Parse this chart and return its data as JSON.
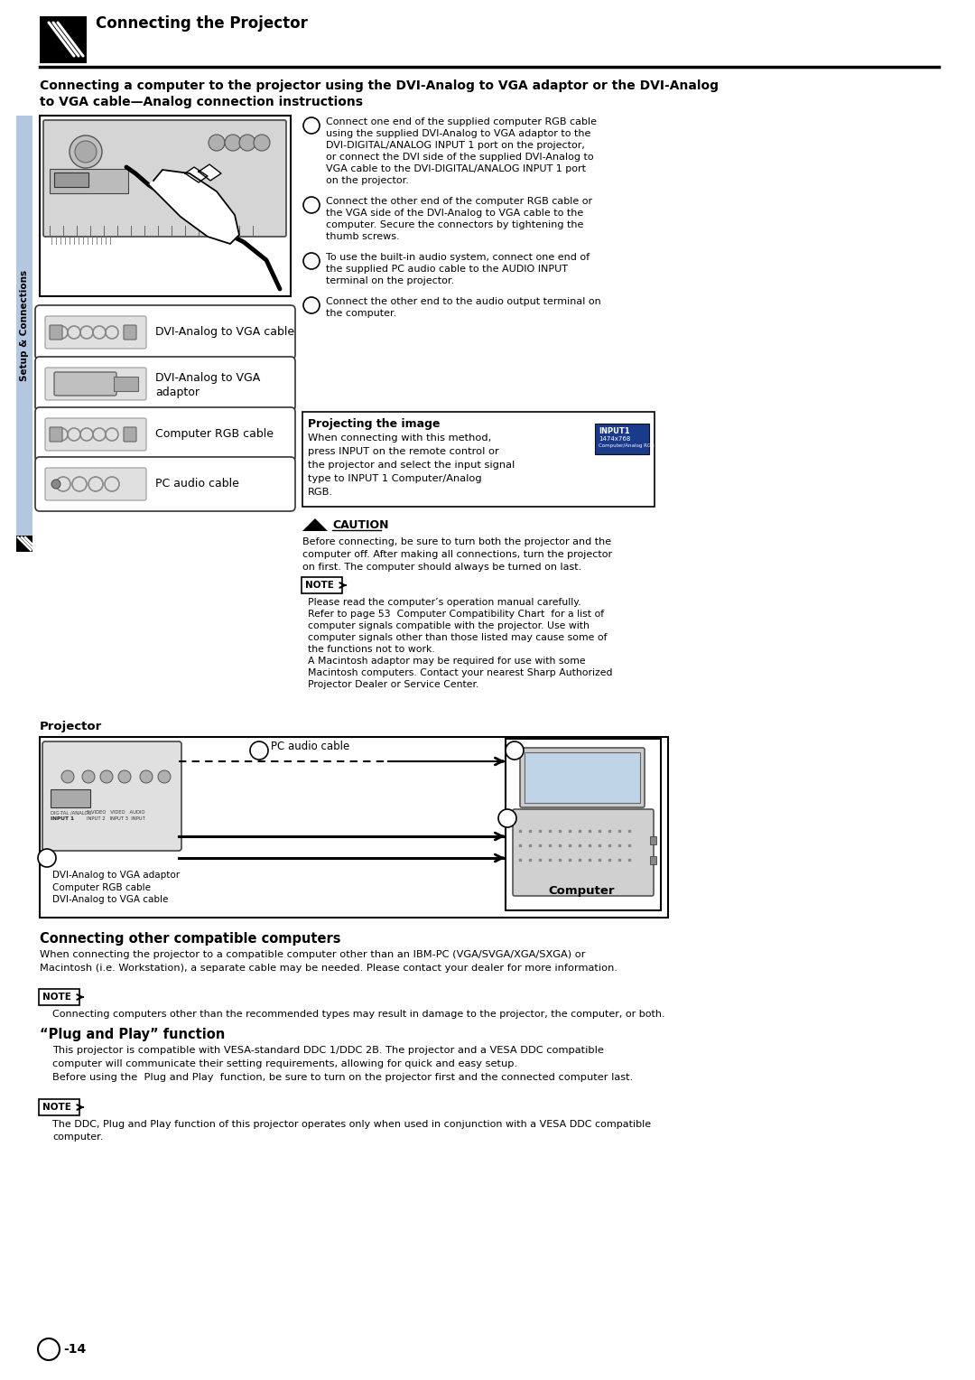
{
  "bg_color": "#ffffff",
  "page_width": 10.8,
  "page_height": 15.28,
  "header_title": "Connecting the Projector",
  "section_title_line1": "Connecting a computer to the projector using the DVI-Analog to VGA adaptor or the DVI-Analog",
  "section_title_line2": "to VGA cable—Analog connection instructions",
  "steps": [
    "Connect one end of the supplied computer RGB cable\nusing the supplied DVI-Analog to VGA adaptor to the\nDVI-DIGITAL/ANALOG INPUT 1 port on the projector,\nor connect the DVI side of the supplied DVI-Analog to\nVGA cable to the DVI-DIGITAL/ANALOG INPUT 1 port\non the projector.",
    "Connect the other end of the computer RGB cable or\nthe VGA side of the DVI-Analog to VGA cable to the\ncomputer. Secure the connectors by tightening the\nthumb screws.",
    "To use the built-in audio system, connect one end of\nthe supplied PC audio cable to the AUDIO INPUT\nterminal on the projector.",
    "Connect the other end to the audio output terminal on\nthe computer."
  ],
  "cable_labels": [
    "DVI-Analog to VGA cable",
    "DVI-Analog to VGA\nadaptor",
    "Computer RGB cable",
    "PC audio cable"
  ],
  "projecting_title": "Projecting the image",
  "projecting_text": "When connecting with this method,\npress INPUT on the remote control or\nthe projector and select the input signal\ntype to INPUT 1 Computer/Analog\nRGB.",
  "caution_title": "CAUTION",
  "caution_text": "Before connecting, be sure to turn both the projector and the\ncomputer off. After making all connections, turn the projector\non first. The computer should always be turned on last.",
  "note1_lines": [
    "Please read the computer’s operation manual carefully.",
    "Refer to page 53  Computer Compatibility Chart  for a list of",
    "computer signals compatible with the projector. Use with",
    "computer signals other than those listed may cause some of",
    "the functions not to work.",
    "A Macintosh adaptor may be required for use with some",
    "Macintosh computers. Contact your nearest Sharp Authorized",
    "Projector Dealer or Service Center."
  ],
  "projector_label": "Projector",
  "diagram_pc_audio_label": "PC audio cable",
  "diagram_adaptor_label": "DVI-Analog to VGA adaptor",
  "diagram_rgb_label": "Computer RGB cable",
  "diagram_dvi_label": "DVI-Analog to VGA cable",
  "diagram_computer_label": "Computer",
  "section2_title": "Connecting other compatible computers",
  "section2_lines": [
    "When connecting the projector to a compatible computer other than an IBM-PC (VGA/SVGA/XGA/SXGA) or",
    "Macintosh (i.e. Workstation), a separate cable may be needed. Please contact your dealer for more information."
  ],
  "note2_line": "Connecting computers other than the recommended types may result in damage to the projector, the computer, or both.",
  "section3_title": "“Plug and Play” function",
  "section3_lines": [
    "This projector is compatible with VESA-standard DDC 1/DDC 2B. The projector and a VESA DDC compatible",
    "computer will communicate their setting requirements, allowing for quick and easy setup.",
    "Before using the  Plug and Play  function, be sure to turn on the projector first and the connected computer last."
  ],
  "note3_lines": [
    "The DDC, Plug and Play function of this projector operates only when used in conjunction with a VESA DDC compatible",
    "computer."
  ],
  "page_num": "-14",
  "sidebar_text": "Setup & Connections"
}
